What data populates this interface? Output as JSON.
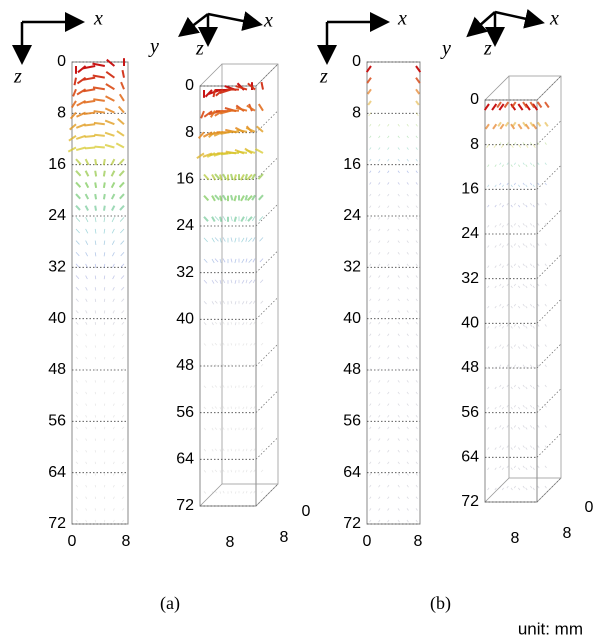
{
  "panels": [
    {
      "axis_labels": [
        "x",
        "z"
      ],
      "zticks": [
        "0",
        "8",
        "16",
        "24",
        "32",
        "40",
        "48",
        "56",
        "64",
        "72"
      ],
      "xticks": [
        "0",
        "8"
      ]
    },
    {
      "axis_labels": [
        "x",
        "y",
        "z"
      ],
      "zticks": [
        "0",
        "8",
        "16",
        "24",
        "32",
        "40",
        "48",
        "56",
        "64",
        "72"
      ],
      "xticks": [
        "8"
      ],
      "yticks": [
        "0",
        "8"
      ]
    },
    {
      "axis_labels": [
        "x",
        "z"
      ],
      "zticks": [
        "0",
        "8",
        "16",
        "24",
        "32",
        "40",
        "48",
        "56",
        "64",
        "72"
      ],
      "xticks": [
        "0",
        "8"
      ]
    },
    {
      "axis_labels": [
        "x",
        "y",
        "z"
      ],
      "zticks": [
        "0",
        "8",
        "16",
        "24",
        "32",
        "40",
        "48",
        "56",
        "64",
        "72"
      ],
      "xticks": [
        "8"
      ],
      "yticks": [
        "0",
        "8"
      ]
    }
  ],
  "captions": [
    "(a)",
    "(b)"
  ],
  "unit": "unit: mm"
}
